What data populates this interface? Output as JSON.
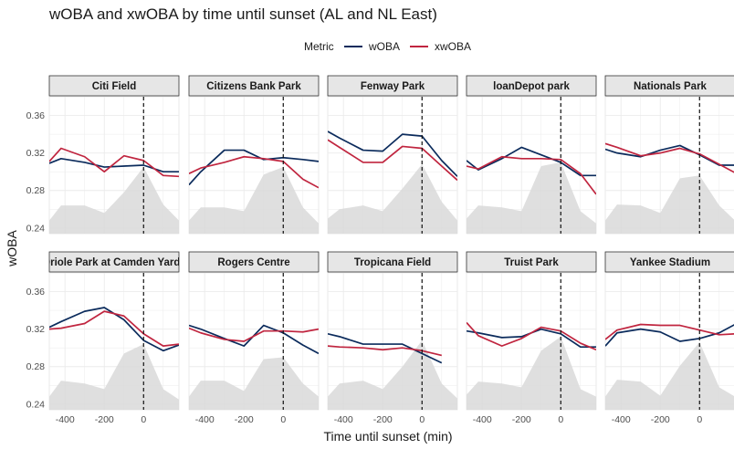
{
  "chart_data": {
    "type": "line",
    "title": "wOBA and xwOBA by time until sunset (AL and NL East)",
    "xlabel": "Time until sunset (min)",
    "ylabel": "wOBA",
    "xlim": [
      -480,
      180
    ],
    "ylim": [
      0.234,
      0.38
    ],
    "x_ticks": [
      -400,
      -200,
      0
    ],
    "x_tick_labels": [
      "-400",
      "-200",
      "0"
    ],
    "y_ticks": [
      0.24,
      0.28,
      0.32,
      0.36
    ],
    "y_tick_labels": [
      "0.24",
      "0.28",
      "0.32",
      "0.36"
    ],
    "reference_line_x": 0,
    "legend": {
      "title": "Metric",
      "position": "top",
      "entries": [
        {
          "name": "wOBA",
          "color": "#0b2b5c"
        },
        {
          "name": "xwOBA",
          "color": "#c0253f"
        }
      ]
    },
    "x": [
      -480,
      -420,
      -300,
      -200,
      -100,
      0,
      100,
      180
    ],
    "panels": [
      {
        "name": "Citi Field",
        "series": [
          {
            "name": "wOBA",
            "values": [
              0.309,
              0.314,
              0.31,
              0.305,
              0.306,
              0.307,
              0.3,
              0.3
            ]
          },
          {
            "name": "xwOBA",
            "values": [
              0.311,
              0.325,
              0.316,
              0.3,
              0.317,
              0.312,
              0.296,
              0.295
            ]
          }
        ],
        "density": [
          0.248,
          0.264,
          0.264,
          0.256,
          0.278,
          0.305,
          0.265,
          0.248
        ]
      },
      {
        "name": "Citizens Bank Park",
        "series": [
          {
            "name": "wOBA",
            "values": [
              0.286,
              0.3,
              0.323,
              0.323,
              0.313,
              0.315,
              0.313,
              0.311
            ]
          },
          {
            "name": "xwOBA",
            "values": [
              0.298,
              0.304,
              0.31,
              0.316,
              0.314,
              0.311,
              0.292,
              0.283
            ]
          }
        ],
        "density": [
          0.248,
          0.262,
          0.262,
          0.258,
          0.297,
          0.305,
          0.262,
          0.245
        ]
      },
      {
        "name": "Fenway Park",
        "series": [
          {
            "name": "wOBA",
            "values": [
              0.343,
              0.336,
              0.323,
              0.322,
              0.34,
              0.338,
              0.312,
              0.295
            ]
          },
          {
            "name": "xwOBA",
            "values": [
              0.334,
              0.326,
              0.31,
              0.31,
              0.327,
              0.325,
              0.306,
              0.291
            ]
          }
        ],
        "density": [
          0.25,
          0.26,
          0.264,
          0.258,
          0.282,
          0.308,
          0.268,
          0.248
        ]
      },
      {
        "name": "loanDepot park",
        "series": [
          {
            "name": "wOBA",
            "values": [
              0.312,
              0.302,
              0.314,
              0.326,
              0.318,
              0.31,
              0.296,
              0.296
            ]
          },
          {
            "name": "xwOBA",
            "values": [
              0.306,
              0.303,
              0.316,
              0.314,
              0.314,
              0.313,
              0.298,
              0.276
            ]
          }
        ],
        "density": [
          0.25,
          0.264,
          0.262,
          0.258,
          0.306,
          0.31,
          0.258,
          0.245
        ]
      },
      {
        "name": "Nationals Park",
        "series": [
          {
            "name": "wOBA",
            "values": [
              0.324,
              0.32,
              0.316,
              0.323,
              0.328,
              0.318,
              0.307,
              0.307
            ]
          },
          {
            "name": "xwOBA",
            "values": [
              0.33,
              0.326,
              0.317,
              0.32,
              0.325,
              0.319,
              0.308,
              0.299
            ]
          }
        ],
        "density": [
          0.248,
          0.265,
          0.264,
          0.256,
          0.293,
          0.296,
          0.264,
          0.248
        ]
      },
      {
        "name": "Oriole Park at Camden Yards",
        "series": [
          {
            "name": "wOBA",
            "values": [
              0.322,
              0.328,
              0.339,
              0.343,
              0.33,
              0.308,
              0.297,
              0.303
            ]
          },
          {
            "name": "xwOBA",
            "values": [
              0.32,
              0.321,
              0.326,
              0.339,
              0.334,
              0.315,
              0.302,
              0.304
            ]
          }
        ],
        "density": [
          0.248,
          0.265,
          0.262,
          0.256,
          0.294,
          0.304,
          0.256,
          0.245
        ]
      },
      {
        "name": "Rogers Centre",
        "series": [
          {
            "name": "wOBA",
            "values": [
              0.324,
              0.32,
              0.31,
              0.302,
              0.324,
              0.316,
              0.303,
              0.294
            ]
          },
          {
            "name": "xwOBA",
            "values": [
              0.321,
              0.316,
              0.309,
              0.307,
              0.318,
              0.318,
              0.317,
              0.32
            ]
          }
        ],
        "density": [
          0.248,
          0.265,
          0.265,
          0.254,
          0.288,
          0.29,
          0.262,
          0.248
        ]
      },
      {
        "name": "Tropicana Field",
        "series": [
          {
            "name": "wOBA",
            "values": [
              0.315,
              0.312,
              0.304,
              0.304,
              0.304,
              0.294,
              0.284,
              null
            ]
          },
          {
            "name": "xwOBA",
            "values": [
              0.302,
              0.301,
              0.3,
              0.298,
              0.3,
              0.297,
              0.292,
              null
            ]
          }
        ],
        "density": [
          0.248,
          0.262,
          0.265,
          0.256,
          0.28,
          0.308,
          0.262,
          0.246
        ]
      },
      {
        "name": "Truist Park",
        "series": [
          {
            "name": "wOBA",
            "values": [
              0.318,
              0.316,
              0.311,
              0.312,
              0.32,
              0.315,
              0.301,
              0.301
            ]
          },
          {
            "name": "xwOBA",
            "values": [
              0.327,
              0.313,
              0.302,
              0.31,
              0.322,
              0.318,
              0.305,
              0.298
            ]
          }
        ],
        "density": [
          0.25,
          0.264,
          0.262,
          0.258,
          0.297,
          0.312,
          0.256,
          0.248
        ]
      },
      {
        "name": "Yankee Stadium",
        "series": [
          {
            "name": "wOBA",
            "values": [
              0.302,
              0.316,
              0.32,
              0.317,
              0.307,
              0.31,
              0.316,
              0.325
            ]
          },
          {
            "name": "xwOBA",
            "values": [
              0.309,
              0.319,
              0.325,
              0.324,
              0.324,
              0.319,
              0.314,
              0.315
            ]
          }
        ],
        "density": [
          0.248,
          0.266,
          0.264,
          0.249,
          0.281,
          0.306,
          0.258,
          0.248
        ]
      }
    ]
  }
}
